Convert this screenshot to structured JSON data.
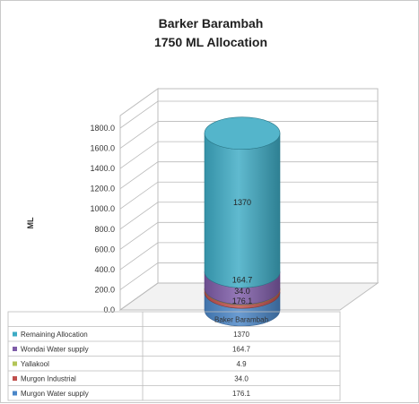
{
  "chart_data": {
    "type": "bar",
    "style": "3d-cylinder-stacked",
    "title": "Barker Barambah",
    "subtitle": "1750 ML Allocation",
    "ylabel": "ML",
    "categories": [
      "Baker Barambah"
    ],
    "ylim": [
      0,
      1800
    ],
    "yticks": [
      "0.0",
      "200.0",
      "400.0",
      "600.0",
      "800.0",
      "1000.0",
      "1200.0",
      "1400.0",
      "1600.0",
      "1800.0"
    ],
    "grid": true,
    "legend": "data-table",
    "series": [
      {
        "name": "Murgon Water supply",
        "values": [
          176.1
        ],
        "label": "176.1",
        "table_value": "176.1",
        "color": "#4a86c8"
      },
      {
        "name": "Murgon Industrial",
        "values": [
          34.0
        ],
        "label": "34.0",
        "table_value": "34.0",
        "color": "#c0504d"
      },
      {
        "name": "Yallakool",
        "values": [
          4.9
        ],
        "label": "",
        "table_value": "4.9",
        "color": "#b3c557"
      },
      {
        "name": "Wondai Water supply",
        "values": [
          164.7
        ],
        "label": "164.7",
        "table_value": "164.7",
        "color": "#7e5ca8"
      },
      {
        "name": "Remaining Allocation",
        "values": [
          1370
        ],
        "label": "1370",
        "table_value": "1370",
        "color": "#3dabc4"
      }
    ]
  }
}
